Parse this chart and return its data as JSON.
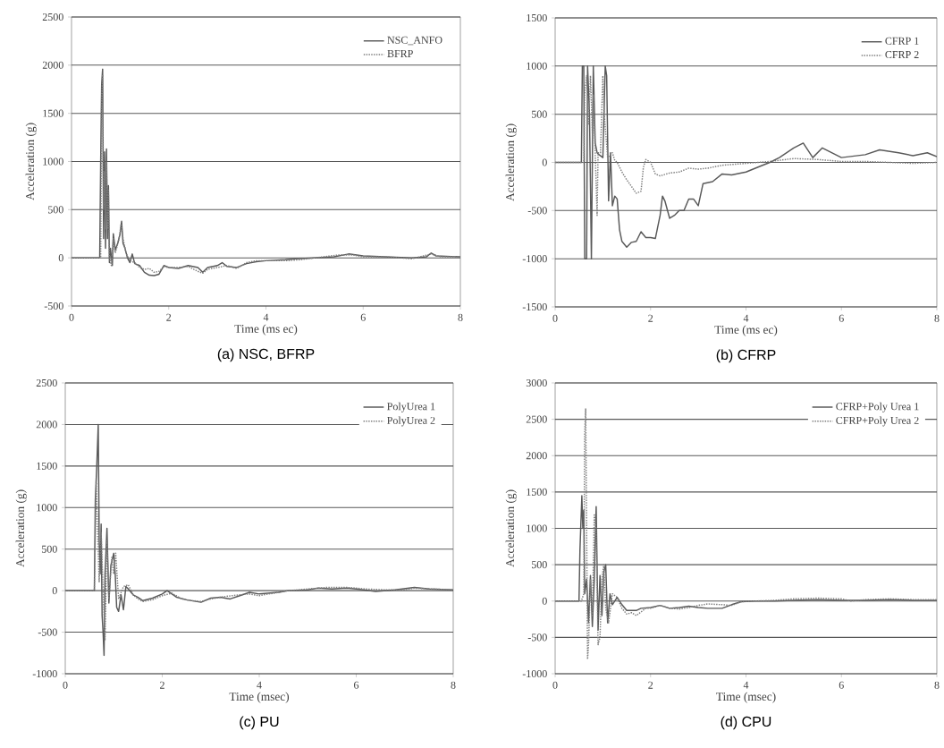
{
  "chart_data": [
    {
      "type": "line",
      "title": "(a) NSC, BFRP",
      "xlabel": "Time (ms ec)",
      "ylabel": "Acceleration (g)",
      "xlim": [
        0,
        8
      ],
      "ylim": [
        -500,
        2500
      ],
      "xticks": [
        0,
        2,
        4,
        6,
        8
      ],
      "yticks": [
        -500,
        0,
        500,
        1000,
        1500,
        2000,
        2500
      ],
      "grid": "y",
      "legend": "top right",
      "marker": "none",
      "series": [
        {
          "name": "NSC_ANFO",
          "color": "#595959",
          "line_style": "solid",
          "x": [
            0,
            0.58,
            0.6,
            0.62,
            0.64,
            0.66,
            0.68,
            0.7,
            0.72,
            0.74,
            0.76,
            0.78,
            0.8,
            0.84,
            0.86,
            0.9,
            0.95,
            1.0,
            1.03,
            1.06,
            1.1,
            1.15,
            1.2,
            1.25,
            1.3,
            1.4,
            1.5,
            1.6,
            1.7,
            1.8,
            1.9,
            2.0,
            2.2,
            2.4,
            2.6,
            2.7,
            2.8,
            3.0,
            3.1,
            3.2,
            3.4,
            3.6,
            3.8,
            4.0,
            4.4,
            4.6,
            5.0,
            5.4,
            5.7,
            6.0,
            6.5,
            7.0,
            7.3,
            7.4,
            7.5,
            8.0
          ],
          "values": [
            0,
            0,
            1000,
            1800,
            1960,
            200,
            1100,
            100,
            1130,
            200,
            750,
            -50,
            100,
            -80,
            250,
            80,
            150,
            250,
            380,
            150,
            100,
            0,
            -50,
            40,
            -60,
            -80,
            -150,
            -180,
            -185,
            -170,
            -80,
            -100,
            -110,
            -80,
            -100,
            -150,
            -100,
            -80,
            -50,
            -90,
            -100,
            -60,
            -40,
            -30,
            -20,
            -10,
            0,
            10,
            40,
            20,
            10,
            0,
            10,
            50,
            20,
            10
          ]
        },
        {
          "name": "BFRP",
          "color": "#7f7f7f",
          "line_style": "dotted",
          "x": [
            0,
            0.6,
            0.62,
            0.64,
            0.66,
            0.68,
            0.7,
            0.72,
            0.74,
            0.76,
            0.78,
            0.82,
            0.86,
            0.9,
            0.98,
            1.02,
            1.06,
            1.12,
            1.2,
            1.3,
            1.4,
            1.5,
            1.6,
            1.7,
            1.8,
            1.9,
            2.0,
            2.2,
            2.4,
            2.6,
            2.7,
            2.8,
            3.0,
            3.2,
            3.4,
            3.6,
            3.8,
            4.0,
            4.4,
            4.7,
            5.0,
            5.5,
            5.8,
            6.0,
            6.5,
            7.0,
            7.4,
            7.6,
            8.0
          ],
          "values": [
            0,
            0,
            1700,
            1900,
            500,
            900,
            300,
            1000,
            300,
            700,
            0,
            -80,
            200,
            50,
            200,
            350,
            200,
            50,
            -30,
            -50,
            -100,
            -120,
            -110,
            -150,
            -140,
            -90,
            -100,
            -100,
            -90,
            -140,
            -160,
            -120,
            -100,
            -80,
            -110,
            -50,
            -30,
            -30,
            -30,
            -20,
            0,
            30,
            30,
            10,
            10,
            -10,
            40,
            10,
            10
          ]
        }
      ]
    },
    {
      "type": "line",
      "title": "(b) CFRP",
      "xlabel": "Time (ms ec)",
      "ylabel": "Acceleration (g)",
      "xlim": [
        0,
        8
      ],
      "ylim": [
        -1500,
        1500
      ],
      "xticks": [
        0,
        2,
        4,
        6,
        8
      ],
      "yticks": [
        -1500,
        -1000,
        -500,
        0,
        500,
        1000,
        1500
      ],
      "grid": "y",
      "legend": "top right",
      "marker": "none",
      "series": [
        {
          "name": "CFRP 1",
          "color": "#595959",
          "line_style": "solid",
          "x": [
            0,
            0.55,
            0.57,
            0.6,
            0.62,
            0.66,
            0.68,
            0.72,
            0.76,
            0.8,
            0.84,
            0.88,
            0.92,
            1.0,
            1.05,
            1.08,
            1.12,
            1.16,
            1.2,
            1.25,
            1.3,
            1.35,
            1.4,
            1.5,
            1.6,
            1.7,
            1.8,
            1.9,
            2.0,
            2.1,
            2.2,
            2.25,
            2.3,
            2.4,
            2.5,
            2.6,
            2.7,
            2.8,
            2.9,
            3.0,
            3.1,
            3.3,
            3.5,
            3.7,
            4.0,
            4.3,
            4.5,
            4.7,
            5.0,
            5.2,
            5.4,
            5.6,
            5.8,
            6.0,
            6.5,
            6.8,
            7.2,
            7.5,
            7.8,
            8.0
          ],
          "values": [
            0,
            0,
            1000,
            1000,
            -1000,
            -1000,
            1000,
            500,
            -1000,
            1000,
            200,
            100,
            80,
            50,
            1000,
            900,
            -400,
            100,
            -450,
            -350,
            -380,
            -700,
            -820,
            -880,
            -830,
            -820,
            -720,
            -780,
            -780,
            -790,
            -550,
            -350,
            -400,
            -580,
            -550,
            -500,
            -500,
            -380,
            -380,
            -450,
            -220,
            -200,
            -120,
            -130,
            -100,
            -40,
            0,
            50,
            150,
            200,
            50,
            150,
            100,
            50,
            80,
            130,
            100,
            70,
            100,
            60
          ]
        },
        {
          "name": "CFRP 2",
          "color": "#7f7f7f",
          "line_style": "dotted",
          "x": [
            0,
            0.6,
            0.62,
            0.66,
            0.7,
            0.74,
            0.78,
            0.8,
            0.84,
            0.88,
            0.9,
            0.95,
            1.0,
            1.03,
            1.1,
            1.2,
            1.25,
            1.3,
            1.4,
            1.5,
            1.6,
            1.7,
            1.8,
            1.85,
            1.9,
            2.0,
            2.1,
            2.2,
            2.4,
            2.6,
            2.8,
            3.0,
            3.2,
            3.5,
            4.0,
            4.5,
            5.0,
            5.5,
            6.0,
            6.5,
            7.0,
            7.5,
            8.0
          ],
          "values": [
            0,
            0,
            700,
            900,
            400,
            900,
            300,
            700,
            100,
            -550,
            100,
            100,
            900,
            500,
            50,
            100,
            20,
            0,
            -100,
            -180,
            -250,
            -320,
            -300,
            -50,
            30,
            0,
            -120,
            -140,
            -110,
            -100,
            -60,
            -70,
            -60,
            -30,
            -10,
            10,
            40,
            30,
            10,
            10,
            0,
            -10,
            0
          ]
        }
      ]
    },
    {
      "type": "line",
      "title": "(c) PU",
      "xlabel": "Time (msec)",
      "ylabel": "Acceleration (g)",
      "xlim": [
        0,
        8
      ],
      "ylim": [
        -1000,
        2500
      ],
      "xticks": [
        0,
        2,
        4,
        6,
        8
      ],
      "yticks": [
        -1000,
        -500,
        0,
        500,
        1000,
        1500,
        2000,
        2500
      ],
      "grid": "y",
      "legend": "top right",
      "marker": "none",
      "series": [
        {
          "name": "PolyUrea 1",
          "color": "#595959",
          "line_style": "solid",
          "x": [
            0,
            0.6,
            0.62,
            0.65,
            0.68,
            0.7,
            0.72,
            0.74,
            0.76,
            0.78,
            0.8,
            0.82,
            0.86,
            0.9,
            0.94,
            0.98,
            1.0,
            1.03,
            1.06,
            1.1,
            1.15,
            1.2,
            1.25,
            1.3,
            1.4,
            1.5,
            1.6,
            1.8,
            2.0,
            2.1,
            2.3,
            2.5,
            2.8,
            3.0,
            3.2,
            3.4,
            3.6,
            3.8,
            4.0,
            4.4,
            4.6,
            5.0,
            5.2,
            5.5,
            5.8,
            6.0,
            6.4,
            6.8,
            7.2,
            7.5,
            8.0
          ],
          "values": [
            0,
            0,
            1100,
            1500,
            2000,
            600,
            200,
            800,
            -300,
            -500,
            -780,
            200,
            750,
            -150,
            300,
            400,
            450,
            200,
            -200,
            -250,
            -50,
            -230,
            50,
            20,
            -50,
            -80,
            -120,
            -90,
            -40,
            0,
            -80,
            -110,
            -140,
            -90,
            -80,
            -100,
            -60,
            -20,
            -40,
            -20,
            0,
            10,
            30,
            20,
            30,
            20,
            -10,
            10,
            40,
            20,
            10
          ]
        },
        {
          "name": "PolyUrea 2",
          "color": "#7f7f7f",
          "line_style": "dotted",
          "x": [
            0,
            0.6,
            0.64,
            0.66,
            0.7,
            0.74,
            0.78,
            0.82,
            0.86,
            0.9,
            0.96,
            1.0,
            1.04,
            1.1,
            1.2,
            1.3,
            1.4,
            1.5,
            1.6,
            1.8,
            2.0,
            2.2,
            2.4,
            2.6,
            2.8,
            3.0,
            3.3,
            3.6,
            3.8,
            4.0,
            4.3,
            4.6,
            5.0,
            5.4,
            5.8,
            6.2,
            6.6,
            7.0,
            7.2,
            7.6,
            8.0
          ],
          "values": [
            0,
            0,
            1300,
            900,
            100,
            700,
            0,
            -600,
            600,
            -100,
            400,
            200,
            450,
            -100,
            50,
            70,
            -50,
            -100,
            -130,
            -110,
            -60,
            -30,
            -100,
            -120,
            -130,
            -100,
            -70,
            -50,
            -40,
            -60,
            -30,
            0,
            20,
            40,
            40,
            20,
            10,
            10,
            30,
            20,
            10
          ]
        }
      ]
    },
    {
      "type": "line",
      "title": "(d) CPU",
      "xlabel": "Time (msec)",
      "ylabel": "Acceleration (g)",
      "xlim": [
        0,
        8
      ],
      "ylim": [
        -1000,
        3000
      ],
      "xticks": [
        0,
        2,
        4,
        6,
        8
      ],
      "yticks": [
        -1000,
        -500,
        0,
        500,
        1000,
        1500,
        2000,
        2500,
        3000
      ],
      "grid": "y",
      "legend": "top right",
      "marker": "none",
      "series": [
        {
          "name": "CFRP+Poly Urea 1",
          "color": "#595959",
          "line_style": "solid",
          "x": [
            0,
            0.5,
            0.52,
            0.56,
            0.58,
            0.6,
            0.62,
            0.66,
            0.7,
            0.74,
            0.78,
            0.82,
            0.86,
            0.9,
            0.94,
            0.98,
            1.02,
            1.06,
            1.1,
            1.15,
            1.2,
            1.3,
            1.4,
            1.5,
            1.6,
            1.7,
            1.8,
            2.0,
            2.2,
            2.4,
            2.6,
            2.8,
            3.0,
            3.2,
            3.5,
            3.7,
            3.9,
            4.2,
            4.6,
            5.0,
            5.5,
            6.0,
            6.5,
            7.0,
            7.5,
            8.0
          ],
          "values": [
            0,
            0,
            700,
            1450,
            1000,
            1250,
            100,
            300,
            -300,
            350,
            -350,
            300,
            1300,
            -400,
            350,
            -200,
            400,
            500,
            -300,
            100,
            -50,
            50,
            -50,
            -130,
            -130,
            -130,
            -100,
            -90,
            -60,
            -100,
            -90,
            -70,
            -90,
            -100,
            -100,
            -50,
            -10,
            0,
            0,
            10,
            20,
            10,
            10,
            20,
            10,
            10
          ]
        },
        {
          "name": "CFRP+Poly Urea 2",
          "color": "#7f7f7f",
          "line_style": "dotted",
          "x": [
            0,
            0.55,
            0.6,
            0.62,
            0.64,
            0.66,
            0.68,
            0.7,
            0.74,
            0.78,
            0.82,
            0.86,
            0.9,
            0.94,
            0.98,
            1.02,
            1.06,
            1.12,
            1.2,
            1.3,
            1.4,
            1.5,
            1.6,
            1.7,
            1.8,
            1.9,
            2.0,
            2.2,
            2.4,
            2.6,
            2.8,
            3.0,
            3.2,
            3.5,
            3.7,
            3.9,
            4.2,
            4.6,
            5.0,
            5.5,
            6.0,
            6.2,
            6.5,
            7.0,
            7.5,
            8.0
          ],
          "values": [
            0,
            0,
            100,
            2300,
            2650,
            1000,
            -800,
            -600,
            300,
            -200,
            1200,
            1000,
            -600,
            -500,
            300,
            500,
            -100,
            -300,
            100,
            50,
            -100,
            -180,
            -160,
            -200,
            -150,
            -100,
            -100,
            -60,
            -100,
            -110,
            -90,
            -60,
            -40,
            -50,
            -60,
            -10,
            0,
            10,
            30,
            40,
            30,
            0,
            20,
            30,
            20,
            20
          ]
        }
      ]
    }
  ]
}
